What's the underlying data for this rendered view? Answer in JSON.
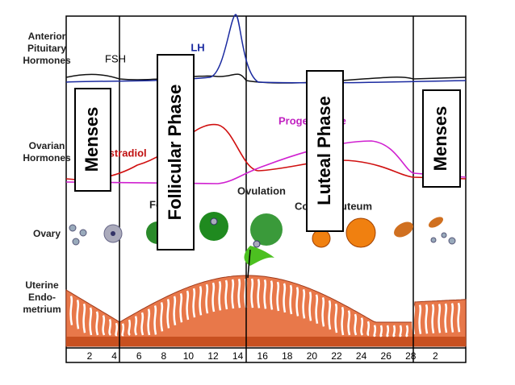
{
  "labels": {
    "pituitary": [
      "Anterior",
      "Pituitary",
      "Hormones"
    ],
    "fsh": "FSH",
    "lh": "LH",
    "ovarian": [
      "Ovarian",
      "Hormones"
    ],
    "estradiol": "Estradiol",
    "progesterone": "Progesterone",
    "follicle": "Follicle",
    "ovulation": "Ovulation",
    "corpus_luteum": "Corpus Luteum",
    "ovary": "Ovary",
    "uterine": [
      "Uterine",
      "Endo-",
      "metrium"
    ]
  },
  "phases": {
    "menses_left": "Menses",
    "follicular": "Follicular Phase",
    "luteal": "Luteal Phase",
    "menses_right": "Menses"
  },
  "days": [
    "2",
    "4",
    "6",
    "8",
    "10",
    "12",
    "14",
    "16",
    "18",
    "20",
    "22",
    "24",
    "26",
    "28",
    "2"
  ]
}
